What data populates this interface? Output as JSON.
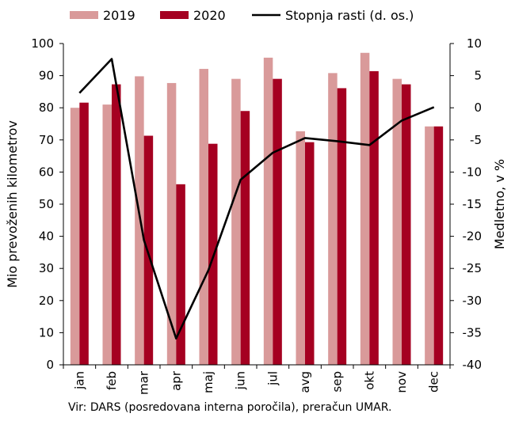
{
  "chart_data": {
    "type": "bar",
    "categories": [
      "jan",
      "feb",
      "mar",
      "apr",
      "maj",
      "jun",
      "jul",
      "avg",
      "sep",
      "okt",
      "nov",
      "dec"
    ],
    "series": [
      {
        "name": "2019",
        "type": "bar",
        "axis": "left",
        "color": "#d99a9a",
        "values": [
          80.0,
          81.0,
          89.8,
          87.7,
          92.1,
          89.0,
          95.6,
          72.7,
          90.8,
          97.1,
          89.0,
          74.2
        ]
      },
      {
        "name": "2020",
        "type": "bar",
        "axis": "left",
        "color": "#a50021",
        "values": [
          81.6,
          87.3,
          71.3,
          56.2,
          68.8,
          79.0,
          89.0,
          69.3,
          86.1,
          91.4,
          87.3,
          74.2
        ]
      },
      {
        "name": "Stopnja rasti (d. os.)",
        "type": "line",
        "axis": "right",
        "color": "#000000",
        "values": [
          2.3,
          7.6,
          -20.6,
          -35.9,
          -25.3,
          -11.2,
          -7.0,
          -4.7,
          -5.2,
          -5.8,
          -2.0,
          0.1
        ]
      }
    ],
    "y_left": {
      "label": "Mio prevoženih kilometrov",
      "min": 0,
      "max": 100,
      "step": 10,
      "tick_labels": [
        "0",
        "10",
        "20",
        "30",
        "40",
        "50",
        "60",
        "70",
        "80",
        "90",
        "100"
      ]
    },
    "y_right": {
      "label": "Medletno, v %",
      "min": -40,
      "max": 10,
      "step": 5,
      "tick_labels": [
        "-40",
        "-35",
        "-30",
        "-25",
        "-20",
        "-15",
        "-10",
        "-5",
        "0",
        "5",
        "10"
      ]
    },
    "legend_position": "top",
    "grid": false,
    "source": "Vir: DARS (posredovana interna poročila), preračun UMAR."
  }
}
